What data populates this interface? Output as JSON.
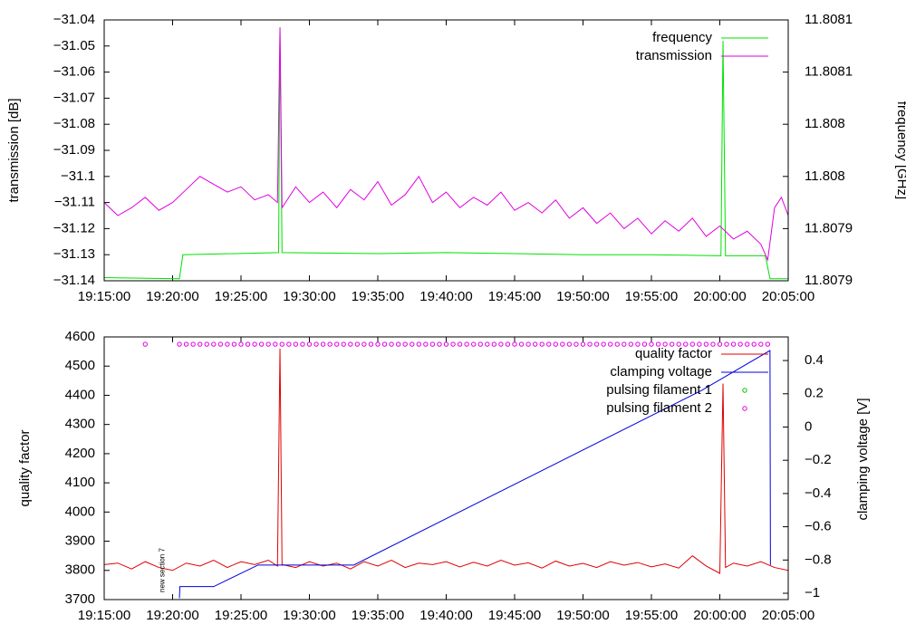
{
  "chart_data": [
    {
      "type": "line",
      "ylabel": "transmission [dB]",
      "y2label": "frequency [GHz]",
      "xlim": [
        "19:15:00",
        "20:05:00"
      ],
      "xticks": [
        "19:15:00",
        "19:20:00",
        "19:25:00",
        "19:30:00",
        "19:35:00",
        "19:40:00",
        "19:45:00",
        "19:50:00",
        "19:55:00",
        "20:00:00",
        "20:05:00"
      ],
      "ylim": [
        -31.14,
        -31.04
      ],
      "yticks": [
        {
          "value": -31.14,
          "label": "−31.14"
        },
        {
          "value": -31.13,
          "label": "−31.13"
        },
        {
          "value": -31.12,
          "label": "−31.12"
        },
        {
          "value": -31.11,
          "label": "−31.11"
        },
        {
          "value": -31.1,
          "label": "−31.1"
        },
        {
          "value": -31.09,
          "label": "−31.09"
        },
        {
          "value": -31.08,
          "label": "−31.08"
        },
        {
          "value": -31.07,
          "label": "−31.07"
        },
        {
          "value": -31.06,
          "label": "−31.06"
        },
        {
          "value": -31.05,
          "label": "−31.05"
        },
        {
          "value": -31.04,
          "label": "−31.04"
        }
      ],
      "y2lim": [
        11.80786,
        11.80811
      ],
      "y2ticks": [
        {
          "value": 11.80786,
          "label": "11.8079"
        },
        {
          "value": 11.80791,
          "label": "11.8079"
        },
        {
          "value": 11.80796,
          "label": "11.808"
        },
        {
          "value": 11.80801,
          "label": "11.808"
        },
        {
          "value": 11.80806,
          "label": "11.8081"
        },
        {
          "value": 11.80811,
          "label": "11.8081"
        }
      ],
      "legend": "upper right",
      "series": [
        {
          "name": "frequency",
          "color": "#00e000",
          "axis": "y2",
          "x": [
            "19:15:00",
            "19:20:30",
            "19:20:45",
            "19:27:45",
            "19:27:51",
            "19:28:00",
            "19:35:00",
            "19:40:00",
            "19:45:00",
            "19:50:00",
            "19:55:00",
            "20:00:05",
            "20:00:14",
            "20:00:25",
            "20:03:20",
            "20:03:40",
            "20:05:00"
          ],
          "values": [
            11.807863,
            11.807862,
            11.807885,
            11.807887,
            11.808103,
            11.807887,
            11.807886,
            11.807887,
            11.807886,
            11.807885,
            11.807885,
            11.807884,
            11.80809,
            11.807884,
            11.807884,
            11.807862,
            11.807862
          ]
        },
        {
          "name": "transmission",
          "color": "#e000e0",
          "x": [
            "19:15:00",
            "19:16:00",
            "19:17:00",
            "19:18:00",
            "19:19:00",
            "19:20:00",
            "19:21:00",
            "19:22:00",
            "19:23:00",
            "19:24:00",
            "19:25:00",
            "19:26:00",
            "19:27:00",
            "19:27:40",
            "19:27:51",
            "19:28:00",
            "19:29:00",
            "19:30:00",
            "19:31:00",
            "19:32:00",
            "19:33:00",
            "19:34:00",
            "19:35:00",
            "19:36:00",
            "19:37:00",
            "19:38:00",
            "19:39:00",
            "19:40:00",
            "19:41:00",
            "19:42:00",
            "19:43:00",
            "19:44:00",
            "19:45:00",
            "19:46:00",
            "19:47:00",
            "19:48:00",
            "19:49:00",
            "19:50:00",
            "19:51:00",
            "19:52:00",
            "19:53:00",
            "19:54:00",
            "19:55:00",
            "19:56:00",
            "19:57:00",
            "19:58:00",
            "19:59:00",
            "20:00:00",
            "20:01:00",
            "20:02:00",
            "20:03:00",
            "20:03:30",
            "20:04:00",
            "20:04:30",
            "20:05:00"
          ],
          "values": [
            -31.11,
            -31.115,
            -31.112,
            -31.108,
            -31.113,
            -31.11,
            -31.105,
            -31.1,
            -31.103,
            -31.106,
            -31.104,
            -31.109,
            -31.107,
            -31.11,
            -31.043,
            -31.112,
            -31.104,
            -31.11,
            -31.106,
            -31.112,
            -31.105,
            -31.109,
            -31.102,
            -31.111,
            -31.107,
            -31.1,
            -31.11,
            -31.106,
            -31.112,
            -31.108,
            -31.111,
            -31.106,
            -31.113,
            -31.11,
            -31.114,
            -31.109,
            -31.116,
            -31.112,
            -31.118,
            -31.114,
            -31.12,
            -31.116,
            -31.122,
            -31.117,
            -31.121,
            -31.116,
            -31.123,
            -31.119,
            -31.124,
            -31.121,
            -31.126,
            -31.132,
            -31.112,
            -31.108,
            -31.115
          ]
        }
      ]
    },
    {
      "type": "line",
      "ylabel": "quality factor",
      "y2label": "clamping voltage [V]",
      "xlim": [
        "19:15:00",
        "20:05:00"
      ],
      "xticks": [
        "19:15:00",
        "19:20:00",
        "19:25:00",
        "19:30:00",
        "19:35:00",
        "19:40:00",
        "19:45:00",
        "19:50:00",
        "19:55:00",
        "20:00:00",
        "20:05:00"
      ],
      "ylim": [
        3700,
        4600
      ],
      "yticks": [
        3700,
        3800,
        3900,
        4000,
        4100,
        4200,
        4300,
        4400,
        4500,
        4600
      ],
      "y2lim": [
        -1.038,
        0.542
      ],
      "y2ticks": [
        {
          "value": -1,
          "label": "−1"
        },
        {
          "value": -0.8,
          "label": "−0.8"
        },
        {
          "value": -0.6,
          "label": "−0.6"
        },
        {
          "value": -0.4,
          "label": "−0.4"
        },
        {
          "value": -0.2,
          "label": "−0.2"
        },
        0,
        0.2,
        0.4
      ],
      "legend": "upper right",
      "annotation": {
        "text": "new section 7",
        "x": "19:19:15"
      },
      "series": [
        {
          "name": "quality factor",
          "color": "#e00000",
          "x": [
            "19:15:00",
            "19:16:00",
            "19:17:00",
            "19:18:00",
            "19:19:00",
            "19:20:00",
            "19:21:00",
            "19:22:00",
            "19:23:00",
            "19:24:00",
            "19:25:00",
            "19:26:00",
            "19:27:00",
            "19:27:40",
            "19:27:51",
            "19:28:00",
            "19:29:00",
            "19:30:00",
            "19:31:00",
            "19:32:00",
            "19:33:00",
            "19:34:00",
            "19:35:00",
            "19:36:00",
            "19:37:00",
            "19:38:00",
            "19:39:00",
            "19:40:00",
            "19:41:00",
            "19:42:00",
            "19:43:00",
            "19:44:00",
            "19:45:00",
            "19:46:00",
            "19:47:00",
            "19:48:00",
            "19:49:00",
            "19:50:00",
            "19:51:00",
            "19:52:00",
            "19:53:00",
            "19:54:00",
            "19:55:00",
            "19:56:00",
            "19:57:00",
            "19:58:00",
            "19:59:00",
            "20:00:00",
            "20:00:14",
            "20:00:25",
            "20:01:00",
            "20:02:00",
            "20:03:00",
            "20:04:00",
            "20:05:00"
          ],
          "values": [
            3820,
            3825,
            3805,
            3830,
            3810,
            3800,
            3825,
            3815,
            3835,
            3810,
            3830,
            3820,
            3835,
            3815,
            4560,
            3820,
            3810,
            3830,
            3815,
            3825,
            3805,
            3830,
            3815,
            3835,
            3810,
            3825,
            3820,
            3830,
            3812,
            3828,
            3815,
            3835,
            3818,
            3826,
            3808,
            3832,
            3815,
            3824,
            3810,
            3830,
            3818,
            3827,
            3812,
            3822,
            3808,
            3850,
            3815,
            3790,
            4440,
            3810,
            3825,
            3815,
            3830,
            3810,
            3800
          ]
        },
        {
          "name": "clamping voltage",
          "color": "#0000e0",
          "axis": "y2",
          "x": [
            "19:20:30",
            "19:20:32",
            "19:23:00",
            "19:26:15",
            "19:33:15",
            "19:58:40",
            "20:03:40",
            "20:03:42"
          ],
          "values": [
            -1.03,
            -0.96,
            -0.96,
            -0.83,
            -0.83,
            0.22,
            0.46,
            -0.83
          ]
        },
        {
          "name": "pulsing filament 1",
          "color": "#00c000",
          "type": "scatter",
          "x": [],
          "values": []
        },
        {
          "name": "pulsing filament 2",
          "color": "#e000e0",
          "type": "scatter",
          "x": [
            "19:18:00",
            "19:20:30",
            "19:21:00",
            "19:21:30",
            "19:22:00",
            "19:22:30",
            "19:23:00",
            "19:23:30",
            "19:24:00",
            "19:24:30",
            "19:25:00",
            "19:25:30",
            "19:26:00",
            "19:26:30",
            "19:27:00",
            "19:27:30",
            "19:28:00",
            "19:28:30",
            "19:29:00",
            "19:29:30",
            "19:30:00",
            "19:30:30",
            "19:31:00",
            "19:31:30",
            "19:32:00",
            "19:32:30",
            "19:33:00",
            "19:33:30",
            "19:34:00",
            "19:34:30",
            "19:35:00",
            "19:35:30",
            "19:36:00",
            "19:36:30",
            "19:37:00",
            "19:37:30",
            "19:38:00",
            "19:38:30",
            "19:39:00",
            "19:39:30",
            "19:40:00",
            "19:40:30",
            "19:41:00",
            "19:41:30",
            "19:42:00",
            "19:42:30",
            "19:43:00",
            "19:43:30",
            "19:44:00",
            "19:44:30",
            "19:45:00",
            "19:45:30",
            "19:46:00",
            "19:46:30",
            "19:47:00",
            "19:47:30",
            "19:48:00",
            "19:48:30",
            "19:49:00",
            "19:49:30",
            "19:50:00",
            "19:50:30",
            "19:51:00",
            "19:51:30",
            "19:52:00",
            "19:52:30",
            "19:53:00",
            "19:53:30",
            "19:54:00",
            "19:54:30",
            "19:55:00",
            "19:55:30",
            "19:56:00",
            "19:56:30",
            "19:57:00",
            "19:57:30",
            "19:58:00",
            "19:58:30",
            "19:59:00",
            "19:59:30",
            "20:00:00",
            "20:00:30",
            "20:01:00",
            "20:01:30",
            "20:02:00",
            "20:02:30",
            "20:03:00",
            "20:03:30"
          ],
          "values": [
            4575,
            4575,
            4575,
            4575,
            4575,
            4575,
            4575,
            4575,
            4575,
            4575,
            4575,
            4575,
            4575,
            4575,
            4575,
            4575,
            4575,
            4575,
            4575,
            4575,
            4575,
            4575,
            4575,
            4575,
            4575,
            4575,
            4575,
            4575,
            4575,
            4575,
            4575,
            4575,
            4575,
            4575,
            4575,
            4575,
            4575,
            4575,
            4575,
            4575,
            4575,
            4575,
            4575,
            4575,
            4575,
            4575,
            4575,
            4575,
            4575,
            4575,
            4575,
            4575,
            4575,
            4575,
            4575,
            4575,
            4575,
            4575,
            4575,
            4575,
            4575,
            4575,
            4575,
            4575,
            4575,
            4575,
            4575,
            4575,
            4575,
            4575,
            4575,
            4575,
            4575,
            4575,
            4575,
            4575,
            4575,
            4575,
            4575,
            4575,
            4575,
            4575,
            4575,
            4575,
            4575,
            4575,
            4575,
            4575
          ]
        }
      ]
    }
  ]
}
